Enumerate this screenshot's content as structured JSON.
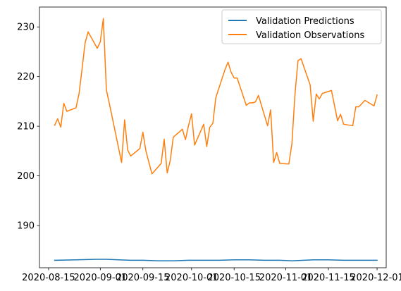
{
  "chart_data": {
    "type": "line",
    "title": "",
    "xlabel": "",
    "ylabel": "",
    "x_type": "date",
    "xlim": [
      "2020-08-12",
      "2020-12-04"
    ],
    "ylim": [
      181.5,
      234
    ],
    "x_ticks": [
      "2020-08-15",
      "2020-09-01",
      "2020-09-15",
      "2020-10-01",
      "2020-10-15",
      "2020-11-01",
      "2020-11-15",
      "2020-12-01"
    ],
    "y_ticks": [
      190,
      200,
      210,
      220,
      230
    ],
    "grid": false,
    "legend_position": "upper-right",
    "series": [
      {
        "name": "Validation Predictions",
        "color": "#1f77b4",
        "points": [
          [
            "2020-08-17",
            183.0
          ],
          [
            "2020-08-24",
            183.1
          ],
          [
            "2020-08-31",
            183.2
          ],
          [
            "2020-09-03",
            183.2
          ],
          [
            "2020-09-07",
            183.1
          ],
          [
            "2020-09-11",
            183.0
          ],
          [
            "2020-09-15",
            183.0
          ],
          [
            "2020-09-20",
            182.9
          ],
          [
            "2020-09-25",
            182.9
          ],
          [
            "2020-09-30",
            183.0
          ],
          [
            "2020-10-05",
            183.0
          ],
          [
            "2020-10-10",
            183.0
          ],
          [
            "2020-10-15",
            183.1
          ],
          [
            "2020-10-20",
            183.1
          ],
          [
            "2020-10-25",
            183.0
          ],
          [
            "2020-10-30",
            183.0
          ],
          [
            "2020-11-03",
            182.9
          ],
          [
            "2020-11-07",
            183.0
          ],
          [
            "2020-11-10",
            183.1
          ],
          [
            "2020-11-15",
            183.1
          ],
          [
            "2020-11-20",
            183.0
          ],
          [
            "2020-11-25",
            183.0
          ],
          [
            "2020-12-01",
            183.0
          ]
        ]
      },
      {
        "name": "Validation Observations",
        "color": "#ff7f0e",
        "points": [
          [
            "2020-08-17",
            210.2
          ],
          [
            "2020-08-18",
            211.5
          ],
          [
            "2020-08-19",
            209.8
          ],
          [
            "2020-08-20",
            214.6
          ],
          [
            "2020-08-21",
            213.0
          ],
          [
            "2020-08-24",
            213.7
          ],
          [
            "2020-08-25",
            216.5
          ],
          [
            "2020-08-26",
            221.5
          ],
          [
            "2020-08-27",
            226.8
          ],
          [
            "2020-08-28",
            229.0
          ],
          [
            "2020-08-31",
            225.7
          ],
          [
            "2020-09-01",
            227.0
          ],
          [
            "2020-09-02",
            231.7
          ],
          [
            "2020-09-03",
            217.3
          ],
          [
            "2020-09-04",
            214.5
          ],
          [
            "2020-09-08",
            202.7
          ],
          [
            "2020-09-09",
            211.3
          ],
          [
            "2020-09-10",
            205.2
          ],
          [
            "2020-09-11",
            204.0
          ],
          [
            "2020-09-14",
            205.5
          ],
          [
            "2020-09-15",
            208.8
          ],
          [
            "2020-09-16",
            205.0
          ],
          [
            "2020-09-18",
            200.4
          ],
          [
            "2020-09-21",
            202.5
          ],
          [
            "2020-09-22",
            207.4
          ],
          [
            "2020-09-23",
            200.6
          ],
          [
            "2020-09-24",
            203.1
          ],
          [
            "2020-09-25",
            207.8
          ],
          [
            "2020-09-28",
            209.4
          ],
          [
            "2020-09-29",
            207.3
          ],
          [
            "2020-09-30",
            210.1
          ],
          [
            "2020-10-01",
            212.5
          ],
          [
            "2020-10-02",
            206.2
          ],
          [
            "2020-10-05",
            210.4
          ],
          [
            "2020-10-06",
            205.9
          ],
          [
            "2020-10-07",
            209.8
          ],
          [
            "2020-10-08",
            210.6
          ],
          [
            "2020-10-09",
            215.8
          ],
          [
            "2020-10-12",
            221.4
          ],
          [
            "2020-10-13",
            222.9
          ],
          [
            "2020-10-14",
            220.9
          ],
          [
            "2020-10-15",
            219.7
          ],
          [
            "2020-10-16",
            219.7
          ],
          [
            "2020-10-19",
            214.2
          ],
          [
            "2020-10-20",
            214.7
          ],
          [
            "2020-10-21",
            214.7
          ],
          [
            "2020-10-22",
            214.9
          ],
          [
            "2020-10-23",
            216.2
          ],
          [
            "2020-10-26",
            210.1
          ],
          [
            "2020-10-27",
            213.3
          ],
          [
            "2020-10-28",
            202.7
          ],
          [
            "2020-10-29",
            204.7
          ],
          [
            "2020-10-30",
            202.5
          ],
          [
            "2020-11-02",
            202.4
          ],
          [
            "2020-11-03",
            206.5
          ],
          [
            "2020-11-04",
            216.4
          ],
          [
            "2020-11-05",
            223.2
          ],
          [
            "2020-11-06",
            223.6
          ],
          [
            "2020-11-09",
            218.3
          ],
          [
            "2020-11-10",
            211.0
          ],
          [
            "2020-11-11",
            216.5
          ],
          [
            "2020-11-12",
            215.5
          ],
          [
            "2020-11-13",
            216.6
          ],
          [
            "2020-11-16",
            217.2
          ],
          [
            "2020-11-17",
            214.2
          ],
          [
            "2020-11-18",
            211.1
          ],
          [
            "2020-11-19",
            212.4
          ],
          [
            "2020-11-20",
            210.4
          ],
          [
            "2020-11-23",
            210.1
          ],
          [
            "2020-11-24",
            213.9
          ],
          [
            "2020-11-25",
            213.9
          ],
          [
            "2020-11-27",
            215.2
          ],
          [
            "2020-11-30",
            214.1
          ],
          [
            "2020-12-01",
            216.3
          ]
        ]
      }
    ]
  }
}
